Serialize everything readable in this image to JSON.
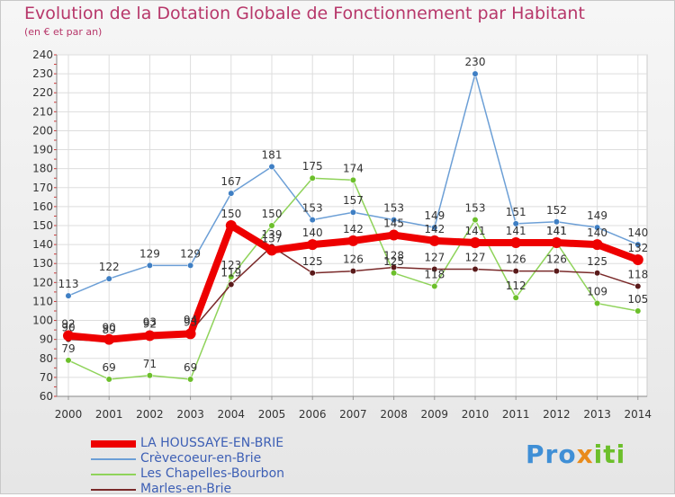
{
  "chart_data": {
    "type": "line",
    "title": "Evolution de la Dotation Globale de Fonctionnement par Habitant",
    "subtitle": "(en € et par an)",
    "x": [
      "2000",
      "2001",
      "2002",
      "2003",
      "2004",
      "2005",
      "2006",
      "2007",
      "2008",
      "2009",
      "2010",
      "2011",
      "2012",
      "2013",
      "2014"
    ],
    "ylim": [
      60,
      240
    ],
    "yticks": [
      60,
      70,
      80,
      90,
      100,
      110,
      120,
      130,
      140,
      150,
      160,
      170,
      180,
      190,
      200,
      210,
      220,
      230,
      240
    ],
    "grid": true,
    "series": [
      {
        "name": "Crèvecoeur-en-Brie",
        "color": "#6c9fd6",
        "marker": "#3f7fc4",
        "values": [
          113,
          122,
          129,
          129,
          167,
          181,
          153,
          157,
          153,
          149,
          230,
          151,
          152,
          149,
          140
        ]
      },
      {
        "name": "Les Chapelles-Bourbon",
        "color": "#8fd35a",
        "marker": "#6cbf2b",
        "values": [
          79,
          69,
          71,
          69,
          123,
          150,
          175,
          174,
          125,
          118,
          153,
          112,
          141,
          109,
          105
        ]
      },
      {
        "name": "Marles-en-Brie",
        "color": "#7a2a2a",
        "marker": "#5a1a1a",
        "values": [
          90,
          89,
          93,
          94,
          119,
          139,
          125,
          126,
          128,
          127,
          127,
          126,
          126,
          125,
          118
        ]
      },
      {
        "name": "LA HOUSSAYE-EN-BRIE",
        "color": "#ee0000",
        "marker": "#ee0000",
        "values": [
          92,
          90,
          92,
          93,
          150,
          137,
          140,
          142,
          145,
          142,
          141,
          141,
          141,
          140,
          132
        ]
      }
    ],
    "legend_order": [
      "LA HOUSSAYE-EN-BRIE",
      "Crèvecoeur-en-Brie",
      "Les Chapelles-Bourbon",
      "Marles-en-Brie"
    ]
  },
  "brand": {
    "p1": "Pro",
    "p2": "x",
    "p3": "i",
    "p4": "ti"
  }
}
